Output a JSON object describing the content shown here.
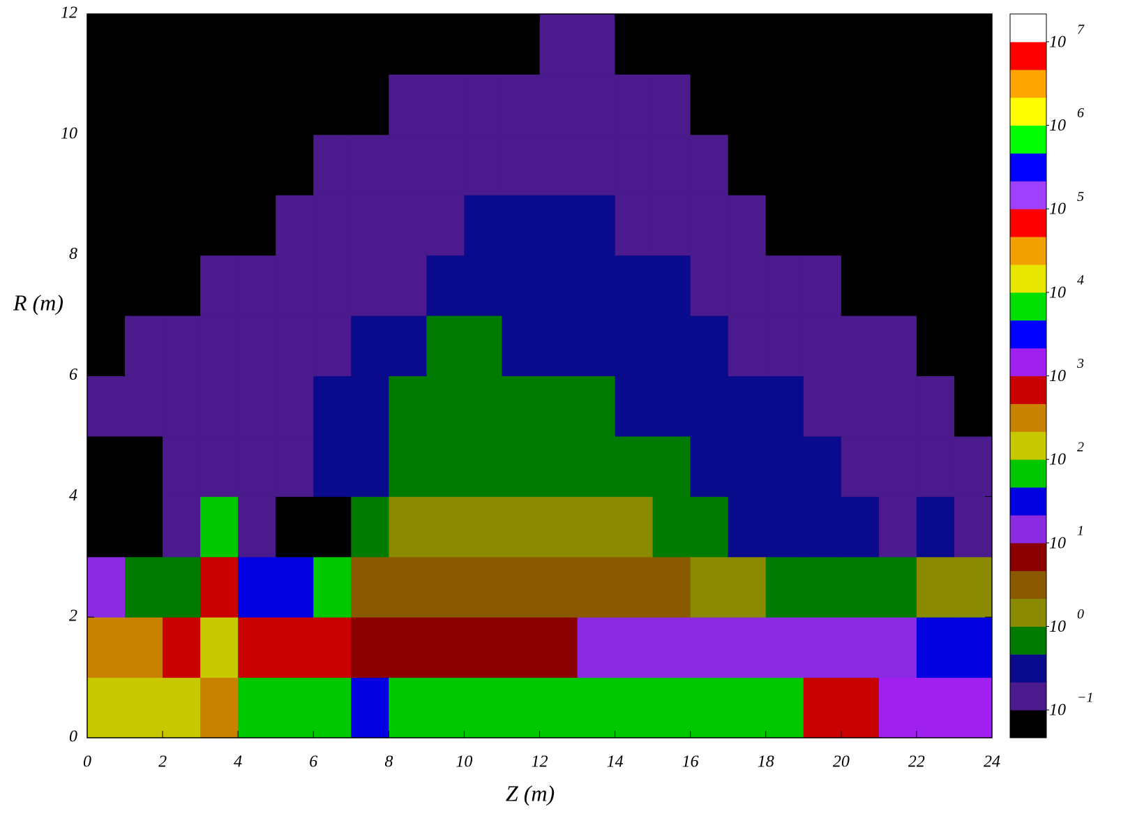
{
  "chart_data": {
    "type": "heatmap",
    "xlabel": "Z (m)",
    "ylabel": "R (m)",
    "xlim": [
      0,
      24
    ],
    "xticks": [
      0,
      2,
      4,
      6,
      8,
      10,
      12,
      14,
      16,
      18,
      20,
      22,
      24
    ],
    "ylim": [
      0,
      12
    ],
    "yticks": [
      0,
      2,
      4,
      6,
      8,
      10,
      12
    ],
    "cell_width": 1,
    "cell_height": 1,
    "values": [
      [
        150,
        150,
        150,
        300,
        70,
        70,
        70,
        30,
        70,
        70,
        70,
        70,
        70,
        70,
        70,
        70,
        70,
        70,
        70,
        700,
        700,
        1500,
        1500,
        1500
      ],
      [
        300,
        300,
        700,
        150,
        700,
        700,
        700,
        7,
        7,
        7,
        7,
        7,
        7,
        15,
        15,
        15,
        15,
        15,
        15,
        15,
        15,
        15,
        30,
        30
      ],
      [
        15,
        0.7,
        0.7,
        700,
        30,
        30,
        70,
        3,
        3,
        3,
        3,
        3,
        3,
        3,
        3,
        3,
        1.5,
        1.5,
        0.7,
        0.7,
        0.7,
        0.7,
        1.5,
        1.5
      ],
      [
        0.05,
        0.05,
        0.15,
        70,
        0.15,
        0.05,
        0.05,
        0.7,
        1.5,
        1.5,
        1.5,
        1.5,
        1.5,
        1.5,
        1.5,
        0.7,
        0.7,
        0.3,
        0.3,
        0.3,
        0.3,
        0.15,
        0.3,
        0.15
      ],
      [
        0.05,
        0.05,
        0.15,
        0.15,
        0.15,
        0.15,
        0.3,
        0.3,
        0.7,
        0.7,
        0.7,
        0.7,
        0.7,
        0.7,
        0.7,
        0.7,
        0.3,
        0.3,
        0.3,
        0.3,
        0.15,
        0.15,
        0.15,
        0.15
      ],
      [
        0.15,
        0.15,
        0.15,
        0.15,
        0.15,
        0.15,
        0.3,
        0.3,
        0.7,
        0.7,
        0.7,
        0.7,
        0.7,
        0.7,
        0.3,
        0.3,
        0.3,
        0.3,
        0.3,
        0.15,
        0.15,
        0.15,
        0.15,
        0.05
      ],
      [
        0.05,
        0.15,
        0.15,
        0.15,
        0.15,
        0.15,
        0.15,
        0.3,
        0.3,
        0.7,
        0.7,
        0.3,
        0.3,
        0.3,
        0.3,
        0.3,
        0.3,
        0.15,
        0.15,
        0.15,
        0.15,
        0.15,
        0.05,
        0.05
      ],
      [
        0.05,
        0.05,
        0.05,
        0.15,
        0.15,
        0.15,
        0.15,
        0.15,
        0.15,
        0.3,
        0.3,
        0.3,
        0.3,
        0.3,
        0.3,
        0.3,
        0.15,
        0.15,
        0.15,
        0.15,
        0.05,
        0.05,
        0.05,
        0.05
      ],
      [
        0.05,
        0.05,
        0.05,
        0.05,
        0.05,
        0.15,
        0.15,
        0.15,
        0.15,
        0.15,
        0.3,
        0.3,
        0.3,
        0.3,
        0.15,
        0.15,
        0.15,
        0.15,
        0.05,
        0.05,
        0.05,
        0.05,
        0.05,
        0.05
      ],
      [
        0.05,
        0.05,
        0.05,
        0.05,
        0.05,
        0.05,
        0.15,
        0.15,
        0.15,
        0.15,
        0.15,
        0.15,
        0.15,
        0.15,
        0.15,
        0.15,
        0.15,
        0.05,
        0.05,
        0.05,
        0.05,
        0.05,
        0.05,
        0.05
      ],
      [
        0.05,
        0.05,
        0.05,
        0.05,
        0.05,
        0.05,
        0.05,
        0.05,
        0.15,
        0.15,
        0.15,
        0.15,
        0.15,
        0.15,
        0.15,
        0.15,
        0.05,
        0.05,
        0.05,
        0.05,
        0.05,
        0.05,
        0.05,
        0.05
      ],
      [
        0.05,
        0.05,
        0.05,
        0.05,
        0.05,
        0.05,
        0.05,
        0.05,
        0.05,
        0.05,
        0.05,
        0.05,
        0.15,
        0.15,
        0.05,
        0.05,
        0.05,
        0.05,
        0.05,
        0.05,
        0.05,
        0.05,
        0.05,
        0.05
      ]
    ],
    "colorbar": {
      "log": true,
      "lim": [
        0.0464,
        21540000
      ],
      "colors": [
        "#000000",
        "#4b1a8c",
        "#0a0a8c",
        "#007a00",
        "#8a8a00",
        "#8a5a00",
        "#8a0000",
        "#8a2be2",
        "#0000e0",
        "#00c800",
        "#c8c800",
        "#c88200",
        "#c80000",
        "#a020f0",
        "#0000ff",
        "#00e000",
        "#e6e600",
        "#f0a000",
        "#ff0000",
        "#a040ff",
        "#0000ff",
        "#00ff00",
        "#ffff00",
        "#ffa500",
        "#ff0000",
        "#ffffff"
      ],
      "ticks": [
        {
          "value": 0.1,
          "label": "10",
          "exponent": "−1"
        },
        {
          "value": 1,
          "label": "10",
          "exponent": "0"
        },
        {
          "value": 10,
          "label": "10",
          "exponent": "1"
        },
        {
          "value": 100,
          "label": "10",
          "exponent": "2"
        },
        {
          "value": 1000,
          "label": "10",
          "exponent": "3"
        },
        {
          "value": 10000,
          "label": "10",
          "exponent": "4"
        },
        {
          "value": 100000,
          "label": "10",
          "exponent": "5"
        },
        {
          "value": 1000000,
          "label": "10",
          "exponent": "6"
        },
        {
          "value": 10000000,
          "label": "10",
          "exponent": "7"
        }
      ]
    }
  }
}
